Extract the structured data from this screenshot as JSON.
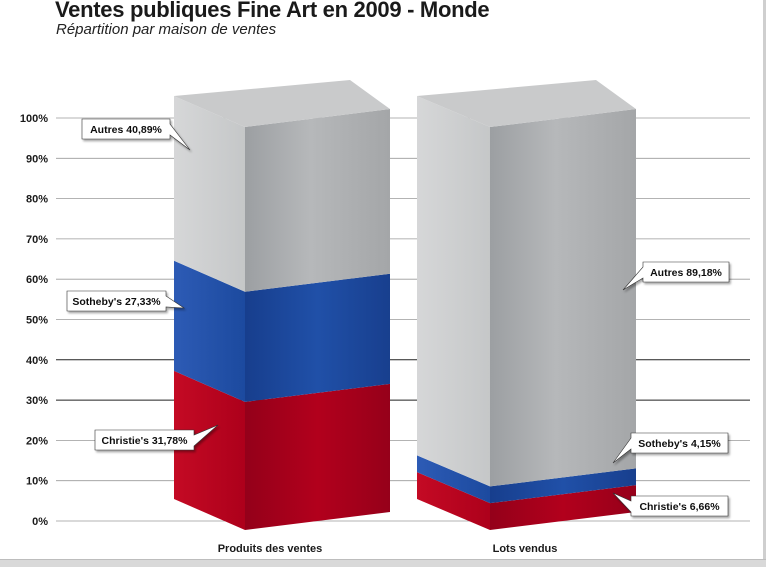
{
  "title": "Ventes publiques Fine Art en 2009 - Monde",
  "subtitle": "Répartition par maison de ventes",
  "colors": {
    "christies": "#a8001a",
    "sothebys": "#1e4aa0",
    "autres": "#b3b5b7",
    "callout_bg": "#ffffff",
    "gridline": "#9a9a9a"
  },
  "chart_data": {
    "type": "bar",
    "stacked": true,
    "categories": [
      "Produits des ventes",
      "Lots vendus"
    ],
    "series": [
      {
        "name": "Christie's",
        "values": [
          31.78,
          6.66
        ],
        "labels": [
          "Christie's 31,78%",
          "Christie's 6,66%"
        ]
      },
      {
        "name": "Sotheby's",
        "values": [
          27.33,
          4.15
        ],
        "labels": [
          "Sotheby's 27,33%",
          "Sotheby's 4,15%"
        ]
      },
      {
        "name": "Autres",
        "values": [
          40.89,
          89.18
        ],
        "labels": [
          "Autres 40,89%",
          "Autres 89,18%"
        ]
      }
    ],
    "yticks": [
      "0%",
      "10%",
      "20%",
      "30%",
      "40%",
      "50%",
      "60%",
      "70%",
      "80%",
      "90%",
      "100%"
    ],
    "ylim": [
      0,
      100
    ],
    "grid": true,
    "title": "Ventes publiques Fine Art en 2009 - Monde",
    "subtitle": "Répartition par maison de ventes"
  }
}
